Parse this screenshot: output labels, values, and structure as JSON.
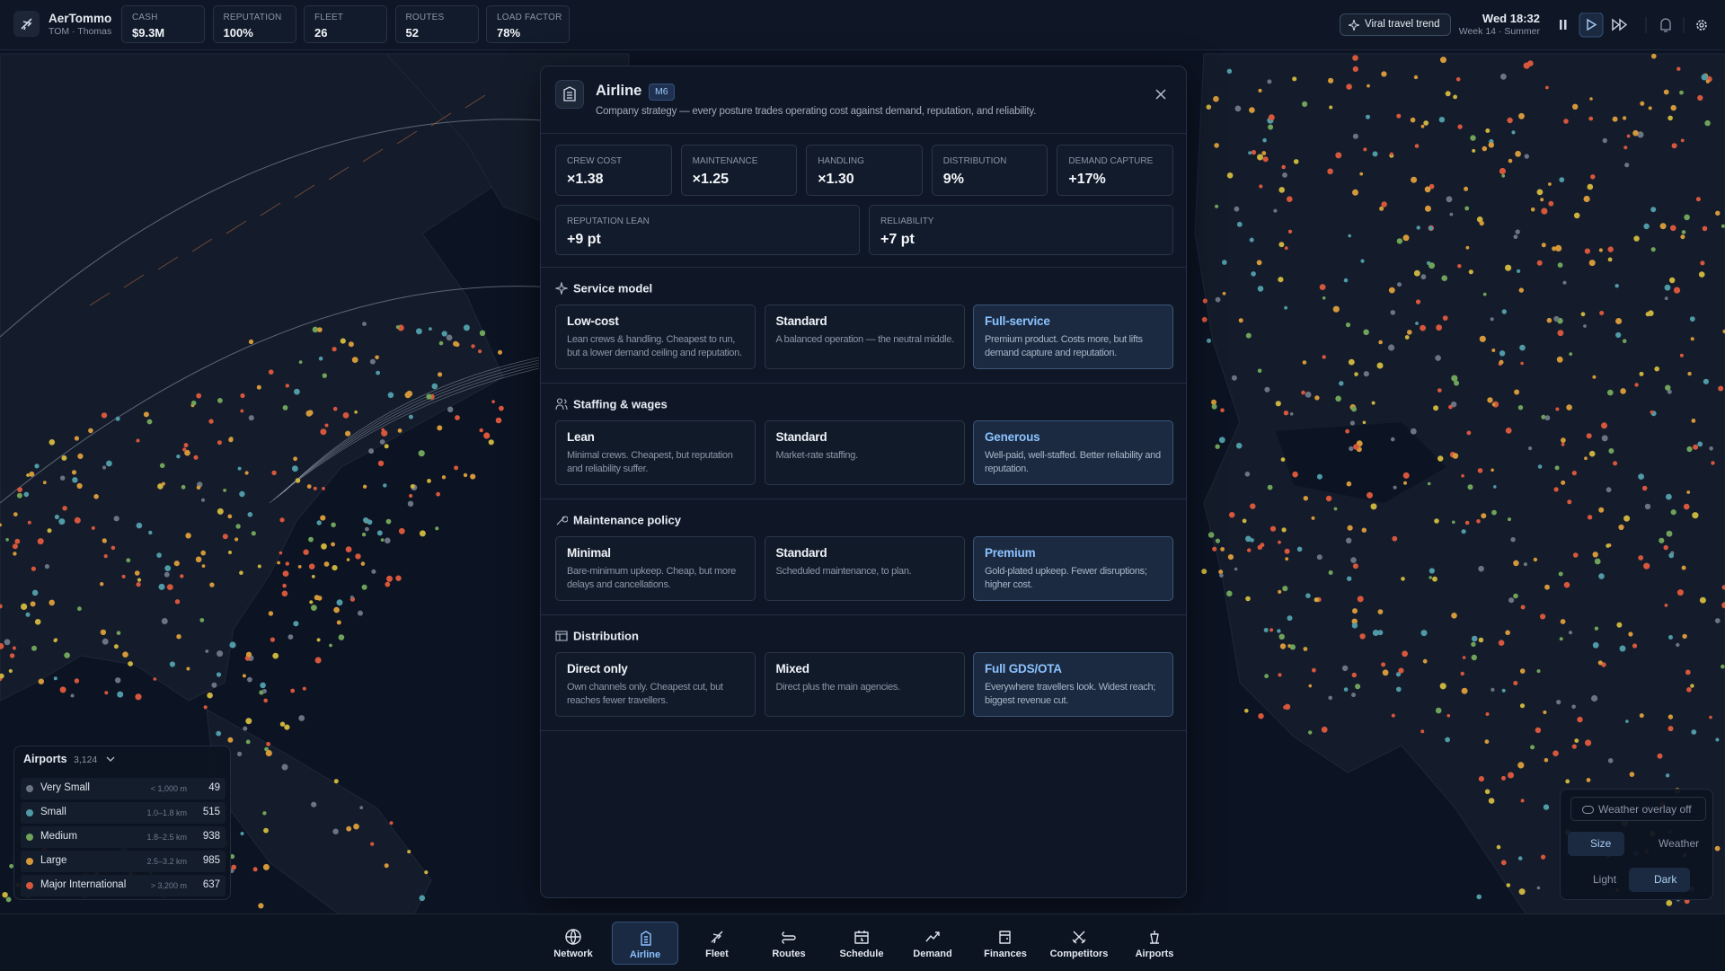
{
  "topbar": {
    "brand": "AerTommo",
    "user": "TOM · Thomas",
    "stats": [
      {
        "label": "CASH",
        "value": "$9.3M"
      },
      {
        "label": "REPUTATION",
        "value": "100%"
      },
      {
        "label": "FLEET",
        "value": "26"
      },
      {
        "label": "ROUTES",
        "value": "52"
      },
      {
        "label": "LOAD FACTOR",
        "value": "78%"
      }
    ],
    "event": "Viral travel trend",
    "clock": "Wed 18:32",
    "week": "Week 14 · Summer"
  },
  "panel": {
    "title": "Airline",
    "badge": "M6",
    "subtitle": "Company strategy — every posture trades operating cost against demand, reputation, and reliability.",
    "metrics": [
      {
        "label": "CREW COST",
        "value": "×1.38"
      },
      {
        "label": "MAINTENANCE",
        "value": "×1.25"
      },
      {
        "label": "HANDLING",
        "value": "×1.30"
      },
      {
        "label": "DISTRIBUTION",
        "value": "9%"
      },
      {
        "label": "DEMAND CAPTURE",
        "value": "+17%"
      },
      {
        "label": "REPUTATION LEAN",
        "value": "+9 pt"
      },
      {
        "label": "RELIABILITY",
        "value": "+7 pt"
      }
    ],
    "sections": [
      {
        "title": "Service model",
        "options": [
          {
            "name": "Low-cost",
            "desc": "Lean crews & handling. Cheapest to run, but a lower demand ceiling and reputation.",
            "selected": false
          },
          {
            "name": "Standard",
            "desc": "A balanced operation — the neutral middle.",
            "selected": false
          },
          {
            "name": "Full-service",
            "desc": "Premium product. Costs more, but lifts demand capture and reputation.",
            "selected": true
          }
        ]
      },
      {
        "title": "Staffing & wages",
        "options": [
          {
            "name": "Lean",
            "desc": "Minimal crews. Cheapest, but reputation and reliability suffer.",
            "selected": false
          },
          {
            "name": "Standard",
            "desc": "Market-rate staffing.",
            "selected": false
          },
          {
            "name": "Generous",
            "desc": "Well-paid, well-staffed. Better reliability and reputation.",
            "selected": true
          }
        ]
      },
      {
        "title": "Maintenance policy",
        "options": [
          {
            "name": "Minimal",
            "desc": "Bare-minimum upkeep. Cheap, but more delays and cancellations.",
            "selected": false
          },
          {
            "name": "Standard",
            "desc": "Scheduled maintenance, to plan.",
            "selected": false
          },
          {
            "name": "Premium",
            "desc": "Gold-plated upkeep. Fewer disruptions; higher cost.",
            "selected": true
          }
        ]
      },
      {
        "title": "Distribution",
        "options": [
          {
            "name": "Direct only",
            "desc": "Own channels only. Cheapest cut, but reaches fewer travellers.",
            "selected": false
          },
          {
            "name": "Mixed",
            "desc": "Direct plus the main agencies.",
            "selected": false
          },
          {
            "name": "Full GDS/OTA",
            "desc": "Everywhere travellers look. Widest reach; biggest revenue cut.",
            "selected": true
          }
        ]
      }
    ]
  },
  "airports": {
    "title": "Airports",
    "count": "3,124",
    "rows": [
      {
        "name": "Very Small",
        "range": "< 1,000 m",
        "count": 49,
        "color": "#6b7482"
      },
      {
        "name": "Small",
        "range": "1.0–1.8 km",
        "count": 515,
        "color": "#4f9aa6"
      },
      {
        "name": "Medium",
        "range": "1.8–2.5 km",
        "count": 938,
        "color": "#6fa35a"
      },
      {
        "name": "Large",
        "range": "2.5–3.2 km",
        "count": 985,
        "color": "#d4983a"
      },
      {
        "name": "Major International",
        "range": "> 3,200 m",
        "count": 637,
        "color": "#d7573c"
      }
    ]
  },
  "map_controls": {
    "weather": "Weather overlay off",
    "modes": [
      {
        "label": "Size",
        "active": true
      },
      {
        "label": "Weather",
        "active": false
      }
    ],
    "themes": [
      {
        "label": "Light",
        "active": false
      },
      {
        "label": "Dark",
        "active": true
      }
    ]
  },
  "nav": [
    {
      "label": "Network",
      "active": false
    },
    {
      "label": "Airline",
      "active": true
    },
    {
      "label": "Fleet",
      "active": false
    },
    {
      "label": "Routes",
      "active": false
    },
    {
      "label": "Schedule",
      "active": false
    },
    {
      "label": "Demand",
      "active": false
    },
    {
      "label": "Finances",
      "active": false
    },
    {
      "label": "Competitors",
      "active": false
    },
    {
      "label": "Airports",
      "active": false
    }
  ]
}
